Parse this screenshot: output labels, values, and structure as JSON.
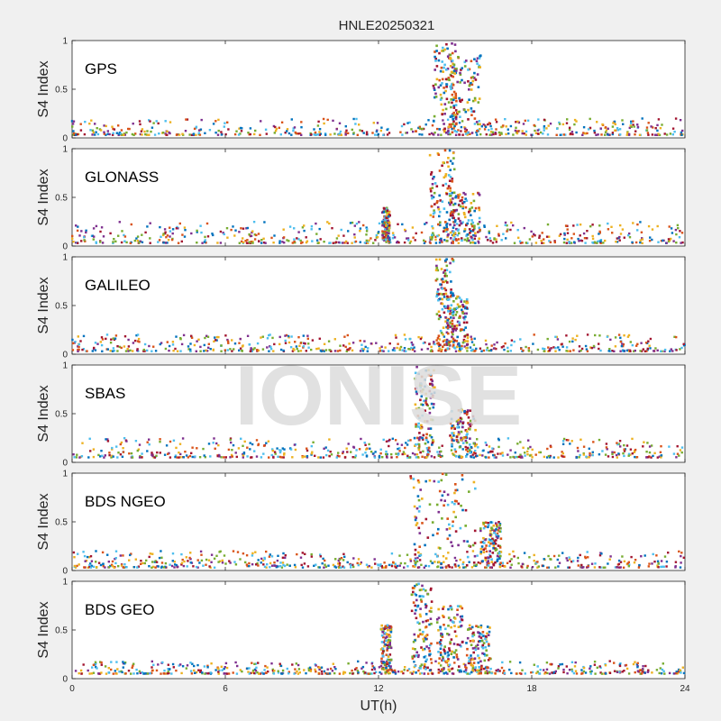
{
  "title": "HNLE20250321",
  "watermark": "IONISE",
  "xlabel": "UT(h)",
  "ylabel": "S4 Index",
  "x_ticks": [
    0,
    6,
    12,
    18,
    24
  ],
  "y_ticks": [
    0,
    0.5,
    1
  ],
  "colors": {
    "background": "#f0f0f0",
    "axes_bg": "#ffffff",
    "watermark": "#dcdcdc",
    "series": [
      "#0072bd",
      "#d95319",
      "#edb120",
      "#7e2f8e",
      "#77ac30",
      "#4dbeee",
      "#a2142f"
    ]
  },
  "chart_data": [
    {
      "type": "scatter",
      "label": "GPS",
      "xlim": [
        0,
        24
      ],
      "ylim": [
        0,
        1
      ],
      "background": [
        0.03,
        0.2
      ],
      "grid": false,
      "events": [
        {
          "center": 14.6,
          "width": 0.45,
          "max": 0.98
        },
        {
          "center": 15.4,
          "width": 0.6,
          "max": 0.85
        }
      ]
    },
    {
      "type": "scatter",
      "label": "GLONASS",
      "xlim": [
        0,
        24
      ],
      "ylim": [
        0,
        1
      ],
      "background": [
        0.03,
        0.25
      ],
      "grid": false,
      "events": [
        {
          "center": 14.5,
          "width": 0.5,
          "max": 1.0
        },
        {
          "center": 15.4,
          "width": 0.6,
          "max": 0.55
        },
        {
          "center": 12.3,
          "width": 0.15,
          "max": 0.4
        }
      ]
    },
    {
      "type": "scatter",
      "label": "GALILEO",
      "xlim": [
        0,
        24
      ],
      "ylim": [
        0,
        1
      ],
      "background": [
        0.03,
        0.2
      ],
      "grid": false,
      "events": [
        {
          "center": 14.6,
          "width": 0.35,
          "max": 0.98
        },
        {
          "center": 15.1,
          "width": 0.4,
          "max": 0.6
        }
      ]
    },
    {
      "type": "scatter",
      "label": "SBAS",
      "xlim": [
        0,
        24
      ],
      "ylim": [
        0,
        1
      ],
      "background": [
        0.05,
        0.25
      ],
      "grid": false,
      "events": [
        {
          "center": 13.8,
          "width": 0.4,
          "max": 0.98
        },
        {
          "center": 15.3,
          "width": 0.5,
          "max": 0.55
        }
      ]
    },
    {
      "type": "scatter",
      "label": "BDS NGEO",
      "xlim": [
        0,
        24
      ],
      "ylim": [
        0,
        1
      ],
      "background": [
        0.03,
        0.2
      ],
      "grid": false,
      "events": [
        {
          "center": 14.5,
          "width": 1.3,
          "max": 1.0
        },
        {
          "center": 16.4,
          "width": 0.4,
          "max": 0.5
        }
      ]
    },
    {
      "type": "scatter",
      "label": "BDS GEO",
      "xlim": [
        0,
        24
      ],
      "ylim": [
        0,
        1
      ],
      "background": [
        0.05,
        0.18
      ],
      "grid": false,
      "events": [
        {
          "center": 12.3,
          "width": 0.2,
          "max": 0.55
        },
        {
          "center": 13.7,
          "width": 0.4,
          "max": 0.98
        },
        {
          "center": 14.8,
          "width": 0.5,
          "max": 0.75
        },
        {
          "center": 15.9,
          "width": 0.5,
          "max": 0.55
        }
      ]
    }
  ]
}
